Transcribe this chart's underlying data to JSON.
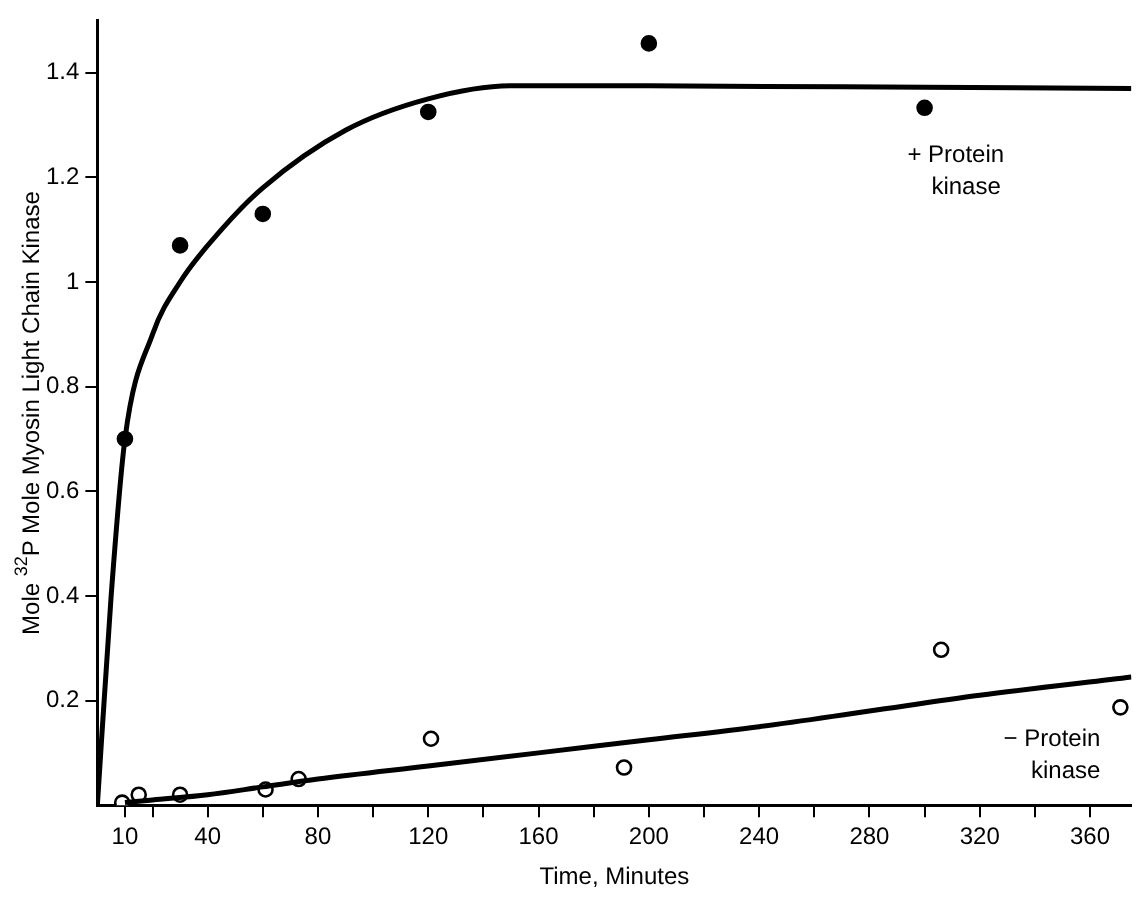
{
  "chart_data": {
    "type": "scatter",
    "xlabel": "Time, Minutes",
    "ylabel": "Mole $^{32}$P Mole Myosin Light Chain Kinase",
    "xlim": [
      0,
      375
    ],
    "ylim": [
      0,
      1.5
    ],
    "xticks": [
      {
        "value": 10,
        "label": "10"
      },
      {
        "value": 20,
        "label": null
      },
      40,
      {
        "value": 60,
        "label": null
      },
      80,
      {
        "value": 100,
        "label": null
      },
      120,
      {
        "value": 140,
        "label": null
      },
      160,
      {
        "value": 180,
        "label": null
      },
      200,
      {
        "value": 220,
        "label": null
      },
      240,
      {
        "value": 260,
        "label": null
      },
      280,
      {
        "value": 300,
        "label": null
      },
      320,
      {
        "value": 340,
        "label": null
      },
      360
    ],
    "yticks": [
      0.2,
      0.4,
      0.6,
      0.8,
      1.0,
      1.2,
      1.4
    ],
    "grid": false,
    "legend": false,
    "marker": "circle",
    "series": [
      {
        "type": "line",
        "color": "#000000",
        "marker": "none",
        "x": [
          0,
          5,
          10,
          20,
          30,
          45,
          60,
          90,
          120,
          150,
          200,
          300,
          375
        ],
        "values": [
          0,
          0.4,
          0.7,
          0.9,
          1.0,
          1.1,
          1.18,
          1.29,
          1.35,
          1.375,
          1.375,
          1.372,
          1.37
        ]
      },
      {
        "type": "line",
        "color": "#000000",
        "marker": "none",
        "x": [
          10,
          20,
          40,
          60,
          80,
          120,
          160,
          200,
          240,
          280,
          320,
          375
        ],
        "values": [
          0.005,
          0.01,
          0.02,
          0.035,
          0.05,
          0.075,
          0.1,
          0.125,
          0.15,
          0.18,
          0.21,
          0.245
        ]
      },
      {
        "type": "scatter",
        "name": "+ Protein kinase",
        "color": "#000000",
        "x": [
          10,
          30,
          60,
          120,
          200,
          300
        ],
        "values": [
          0.7,
          1.07,
          1.13,
          1.325,
          1.456,
          1.333
        ]
      },
      {
        "type": "scatter",
        "name": "− Protein kinase",
        "color": "#ffffff",
        "x": [
          9,
          15,
          30,
          61,
          73,
          121,
          191,
          306,
          371
        ],
        "values": [
          0.005,
          0.02,
          0.02,
          0.03,
          0.05,
          0.127,
          0.072,
          0.297,
          0.187
        ]
      }
    ]
  }
}
